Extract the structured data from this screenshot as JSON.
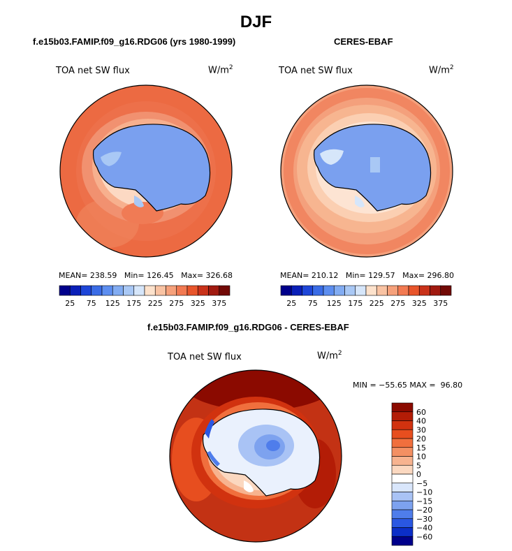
{
  "figure_title": "DJF",
  "panels": [
    {
      "heading": "f.e15b03.FAMIP.f09_g16.RDG06 (yrs 1980-1999)",
      "variable": "TOA net SW flux",
      "units": "W/m",
      "units_sup": "2",
      "stats": "MEAN= 238.59   Min= 126.45   Max= 326.68",
      "colorbar_labels": [
        "25",
        "75",
        "125",
        "175",
        "225",
        "275",
        "325",
        "375"
      ]
    },
    {
      "heading": "CERES-EBAF",
      "variable": "TOA net SW flux",
      "units": "W/m",
      "units_sup": "2",
      "stats": "MEAN= 210.12   Min= 129.57   Max= 296.80",
      "colorbar_labels": [
        "25",
        "75",
        "125",
        "175",
        "225",
        "275",
        "325",
        "375"
      ]
    }
  ],
  "diff_panel": {
    "heading": "f.e15b03.FAMIP.f09_g16.RDG06 - CERES-EBAF",
    "variable": "TOA net SW flux",
    "units": "W/m",
    "units_sup": "2",
    "stats": "MIN = −55.65 MAX =  96.80",
    "colorbar_labels": [
      "60",
      "40",
      "30",
      "20",
      "15",
      "10",
      "5",
      "0",
      "−5",
      "−10",
      "−15",
      "−20",
      "−30",
      "−40",
      "−60"
    ]
  },
  "colors": {
    "abs_palette": [
      "#00008b",
      "#0a1fb8",
      "#1e46d8",
      "#3a6ce6",
      "#5d8ef0",
      "#82acf2",
      "#a9c8f5",
      "#d6e6fa",
      "#fde2cc",
      "#f9c3a3",
      "#f6a17b",
      "#f27a52",
      "#e8552b",
      "#c9321a",
      "#a11a10",
      "#720a06"
    ],
    "diff_palette": [
      "#8b0a00",
      "#b31c06",
      "#d1320f",
      "#e74e1f",
      "#f06f3d",
      "#f39063",
      "#f7b38f",
      "#fbd8c0",
      "#ffffff",
      "#d9e6fb",
      "#a9c3f5",
      "#7da2ef",
      "#4f7deb",
      "#2a57e2",
      "#0b2ec8",
      "#00008b"
    ],
    "land_blue": "#7aa0ef",
    "model_ocean": "#ee6c43",
    "obs_ocean": "#f7b08d",
    "diff_ocean": "#c53414"
  }
}
